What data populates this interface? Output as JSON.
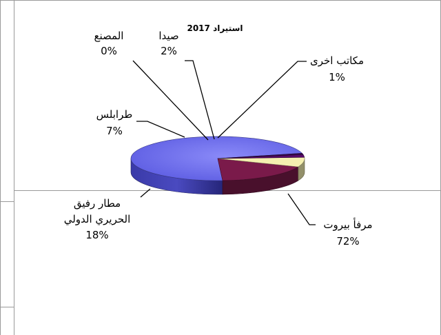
{
  "chart_data": {
    "type": "pie",
    "title": "استيراد 2017",
    "slices": [
      {
        "name": "مرفأ بيروت",
        "value": 72,
        "label": "72%",
        "color": "#6666ee"
      },
      {
        "name": "مطار رفيق الحريري الدولي",
        "name_lines": [
          "مطار رفيق",
          "الحريري الدولي"
        ],
        "value": 18,
        "label": "18%",
        "color": "#7a1a4a"
      },
      {
        "name": "طرابلس",
        "value": 7,
        "label": "7%",
        "color": "#f5f0b0"
      },
      {
        "name": "المصنع",
        "value": 0,
        "label": "0%",
        "color": "#77aacc"
      },
      {
        "name": "صيدا",
        "value": 2,
        "label": "2%",
        "color": "#5a0a6a"
      },
      {
        "name": "مكاتب اخرى",
        "value": 1,
        "label": "1%",
        "color": "#3a0a50"
      }
    ]
  }
}
